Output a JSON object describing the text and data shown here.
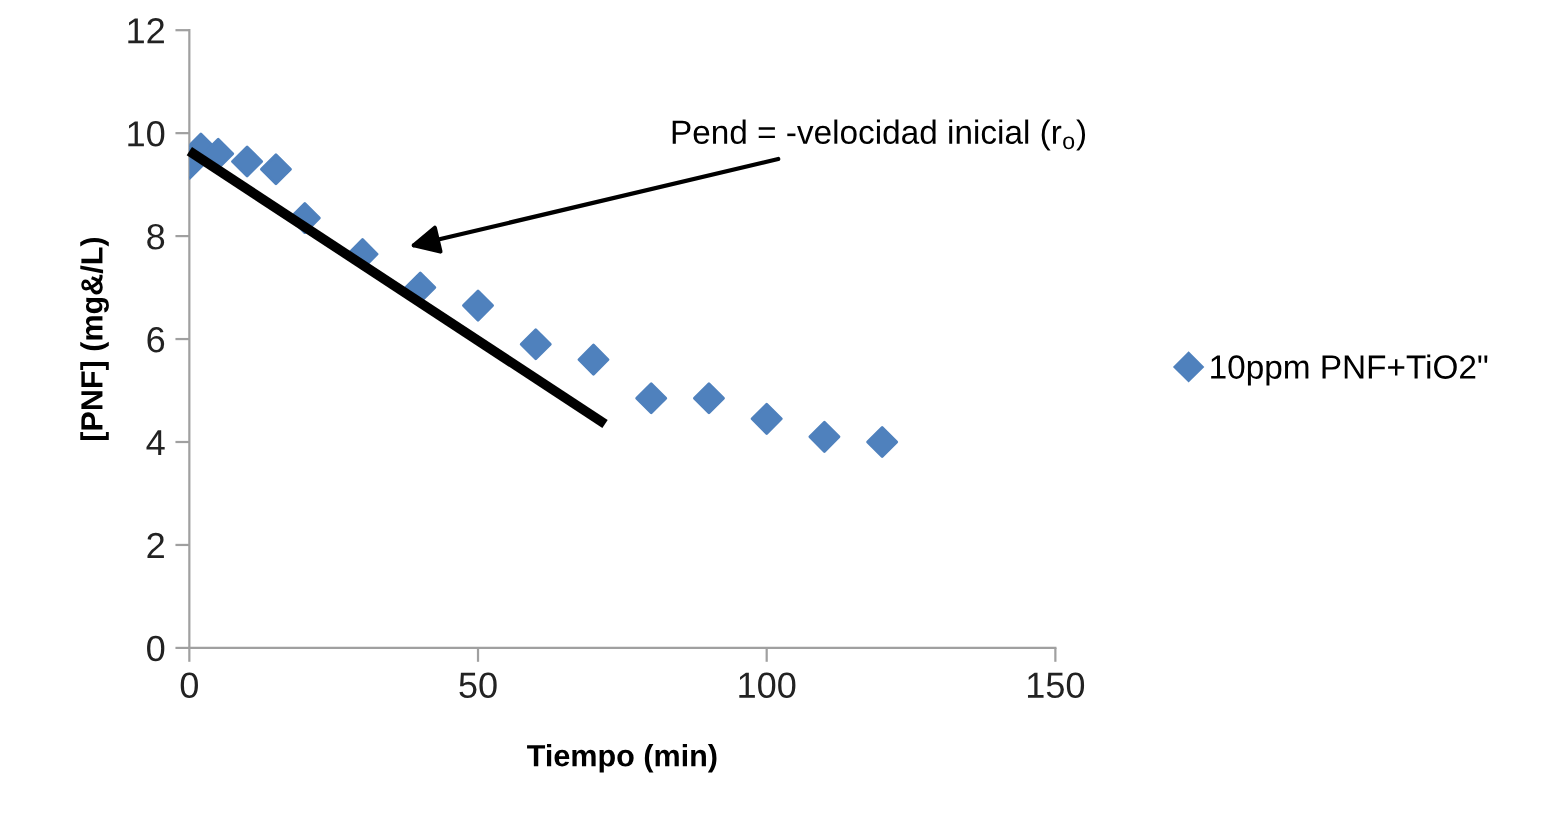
{
  "chart_data": {
    "type": "scatter",
    "xlabel": "Tiempo (min)",
    "ylabel": "[PNF] (mg&/L)",
    "xlim": [
      0,
      150
    ],
    "ylim": [
      0,
      12
    ],
    "xticks": [
      0,
      50,
      100,
      150
    ],
    "yticks": [
      0,
      2,
      4,
      6,
      8,
      10,
      12
    ],
    "grid": false,
    "legend": "right",
    "series": [
      {
        "name": "10ppm PNF+TiO2\"",
        "color": "#4f81bd",
        "marker": "diamond",
        "x": [
          0,
          2,
          5,
          10,
          15,
          20,
          30,
          40,
          50,
          60,
          70,
          80,
          90,
          100,
          110,
          120
        ],
        "values": [
          9.4,
          9.7,
          9.6,
          9.45,
          9.3,
          8.35,
          7.65,
          7.0,
          6.65,
          5.9,
          5.6,
          4.85,
          4.85,
          4.45,
          4.1,
          4.0
        ]
      },
      {
        "type": "line",
        "color": "#000000",
        "line_style": "solid",
        "marker": "none",
        "x": [
          0,
          72
        ],
        "values": [
          9.65,
          4.35
        ]
      }
    ],
    "annotations": [
      "Pend = -velocidad inicial (r$_{o}$)"
    ]
  }
}
